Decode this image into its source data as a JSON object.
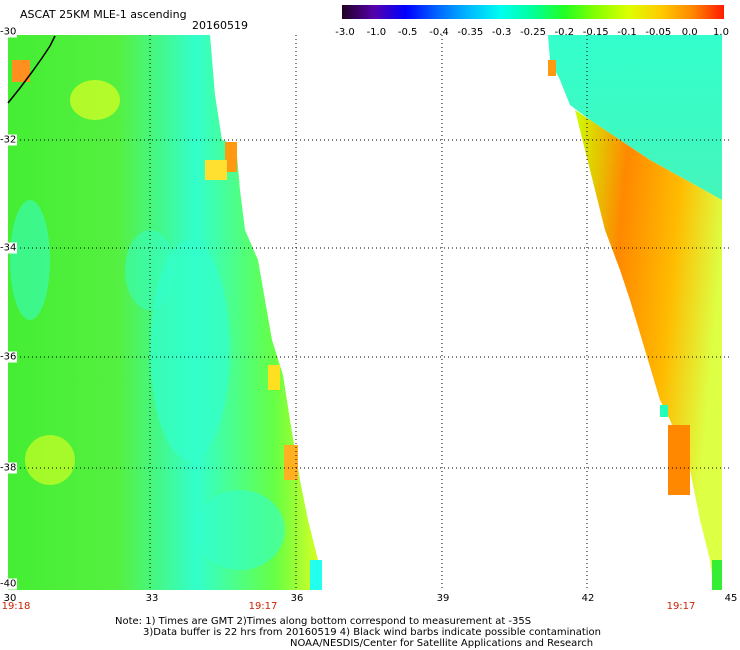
{
  "header": {
    "title": "ASCAT 25KM MLE-1 ascending",
    "date": "20160519"
  },
  "colorbar": {
    "ticks": [
      "-3.0",
      "-1.0",
      "-0.5",
      "-0.4",
      "-0.35",
      "-0.3",
      "-0.25",
      "-0.2",
      "-0.15",
      "-0.1",
      "-0.05",
      "0.0",
      "1.0"
    ],
    "colors": [
      "#220022",
      "#5500aa",
      "#0000ff",
      "#0066ff",
      "#00bbff",
      "#00ffee",
      "#00ff99",
      "#22ff22",
      "#88ff00",
      "#ddff00",
      "#ffcc00",
      "#ff8800",
      "#ff1a00"
    ]
  },
  "map": {
    "lat_labels": [
      "-30",
      "-32",
      "-34",
      "-36",
      "-38",
      "-40"
    ],
    "lon_labels": [
      "30",
      "33",
      "36",
      "39",
      "42",
      "45"
    ],
    "time_labels": [
      "19:18",
      "19:17",
      "19:17"
    ],
    "lat_range": [
      -40,
      -30
    ],
    "lon_range": [
      30,
      45
    ],
    "swath_colors": {
      "green": "#33ee33",
      "light_green": "#88ff33",
      "cyan": "#33ffdd",
      "yellow": "#eeff00",
      "orange": "#ff8800",
      "coast": "#000000"
    }
  },
  "notes": {
    "line1": "Note: 1) Times are GMT 2)Times along bottom correspond to measurement at -35S",
    "line2": "3)Data buffer is 22 hrs from 20160519 4) Black wind barbs indicate possible contamination",
    "line3": "NOAA/NESDIS/Center for Satellite Applications and Research"
  }
}
